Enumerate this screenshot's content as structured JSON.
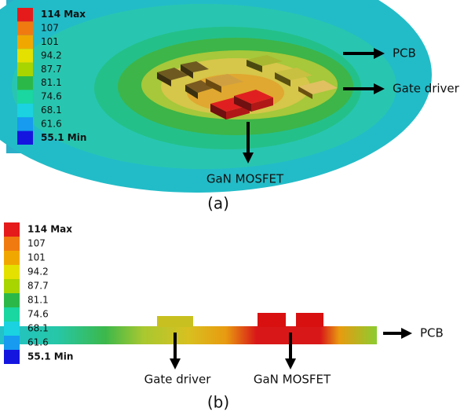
{
  "panel_a": {
    "legend": [
      "114 Max",
      "107",
      "101",
      "94.2",
      "87.7",
      "81.1",
      "74.6",
      "68.1",
      "61.6",
      "55.1 Min"
    ],
    "annotations": [
      "PCB",
      "Gate driver",
      "GaN MOSFET"
    ],
    "caption": "(a)"
  },
  "panel_b": {
    "legend": [
      "114 Max",
      "107",
      "101",
      "94.2",
      "87.7",
      "81.1",
      "74.6",
      "68.1",
      "61.6",
      "55.1 Min"
    ],
    "annotations": [
      "PCB",
      "Gate driver",
      "GaN MOSFET"
    ],
    "caption": "(b)"
  }
}
